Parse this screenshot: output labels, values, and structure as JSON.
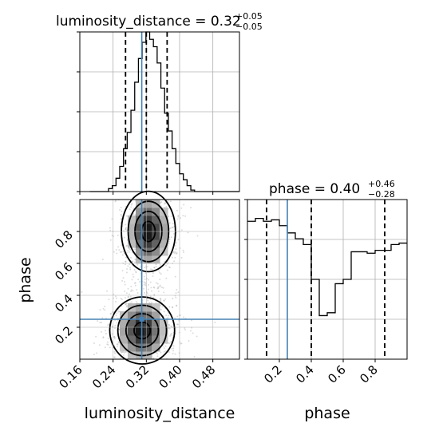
{
  "chart_data": [
    {
      "type": "histogram",
      "panel": "luminosity_distance",
      "title": {
        "base": "luminosity_distance = 0.32",
        "sup": "+0.05",
        "sub": "−0.05"
      },
      "bins": [
        0.184,
        0.193,
        0.202,
        0.211,
        0.22,
        0.229,
        0.238,
        0.247,
        0.256,
        0.265,
        0.274,
        0.283,
        0.292,
        0.301,
        0.31,
        0.319,
        0.328,
        0.337,
        0.346,
        0.355,
        0.364,
        0.373,
        0.382,
        0.391,
        0.4,
        0.409,
        0.418,
        0.427,
        0.436,
        0.445,
        0.454,
        0.463,
        0.472,
        0.481,
        0.49,
        0.499,
        0.508,
        0.517,
        0.526,
        0.535,
        0.544
      ],
      "counts": [
        0,
        0,
        0,
        0,
        0,
        2,
        4,
        9,
        17,
        29,
        40,
        55,
        74,
        90,
        101,
        108,
        103,
        98,
        87,
        70,
        53,
        41,
        29,
        19,
        12,
        8,
        4,
        1,
        0,
        0,
        0,
        0,
        0,
        0,
        0,
        0,
        0,
        0,
        0,
        0
      ],
      "quantiles": [
        0.27,
        0.32,
        0.37
      ],
      "truth": 0.309,
      "xlim": [
        0.16,
        0.544
      ],
      "ylim": [
        0,
        108
      ],
      "grid": true
    },
    {
      "type": "heatmap",
      "panel": "phase-vs-luminosity_distance",
      "x_ticks": [
        "0.16",
        "0.24",
        "0.32",
        "0.40",
        "0.48"
      ],
      "x_tick_values": [
        0.16,
        0.24,
        0.32,
        0.4,
        0.48
      ],
      "y_ticks": [
        "0.2",
        "0.4",
        "0.6",
        "0.8"
      ],
      "y_tick_values": [
        0.2,
        0.4,
        0.6,
        0.8
      ],
      "xlabel": "luminosity_distance",
      "ylabel": "phase",
      "xlim": [
        0.16,
        0.544
      ],
      "ylim": [
        0.0,
        1.0
      ],
      "truth": {
        "x": 0.309,
        "y": 0.25
      },
      "grid": true,
      "modes": [
        {
          "name": "lower",
          "x": 0.31,
          "y": 0.18,
          "sx": 0.03,
          "sy": 0.1
        },
        {
          "name": "upper",
          "x": 0.325,
          "y": 0.8,
          "sx": 0.025,
          "sy": 0.12
        }
      ]
    },
    {
      "type": "histogram",
      "panel": "phase",
      "title": {
        "base": "phase = 0.40",
        "sup": "+0.46",
        "sub": "−0.28"
      },
      "bins": [
        0.0,
        0.05,
        0.1,
        0.15,
        0.2,
        0.25,
        0.3,
        0.35,
        0.4,
        0.45,
        0.5,
        0.55,
        0.6,
        0.65,
        0.7,
        0.75,
        0.8,
        0.85,
        0.9,
        0.95,
        1.0
      ],
      "counts": [
        95,
        97,
        95,
        96,
        92,
        87,
        83,
        79,
        55,
        30,
        32,
        52,
        55,
        74,
        74,
        73,
        75,
        75,
        79,
        80
      ],
      "quantiles": [
        0.12,
        0.4,
        0.86
      ],
      "truth": 0.25,
      "x_ticks": [
        "0.2",
        "0.4",
        "0.6",
        "0.8"
      ],
      "x_tick_values": [
        0.2,
        0.4,
        0.6,
        0.8
      ],
      "xlim": [
        0.0,
        1.0
      ],
      "ylim": [
        0,
        110
      ],
      "xlabel": "phase",
      "grid": true
    }
  ],
  "colors": {
    "truth": "#4682b4",
    "hist": "#000000",
    "quantile": "#000000",
    "grid": "#b0b0b0",
    "density_dark": "#111111",
    "density_light": "#bbbbbb"
  }
}
